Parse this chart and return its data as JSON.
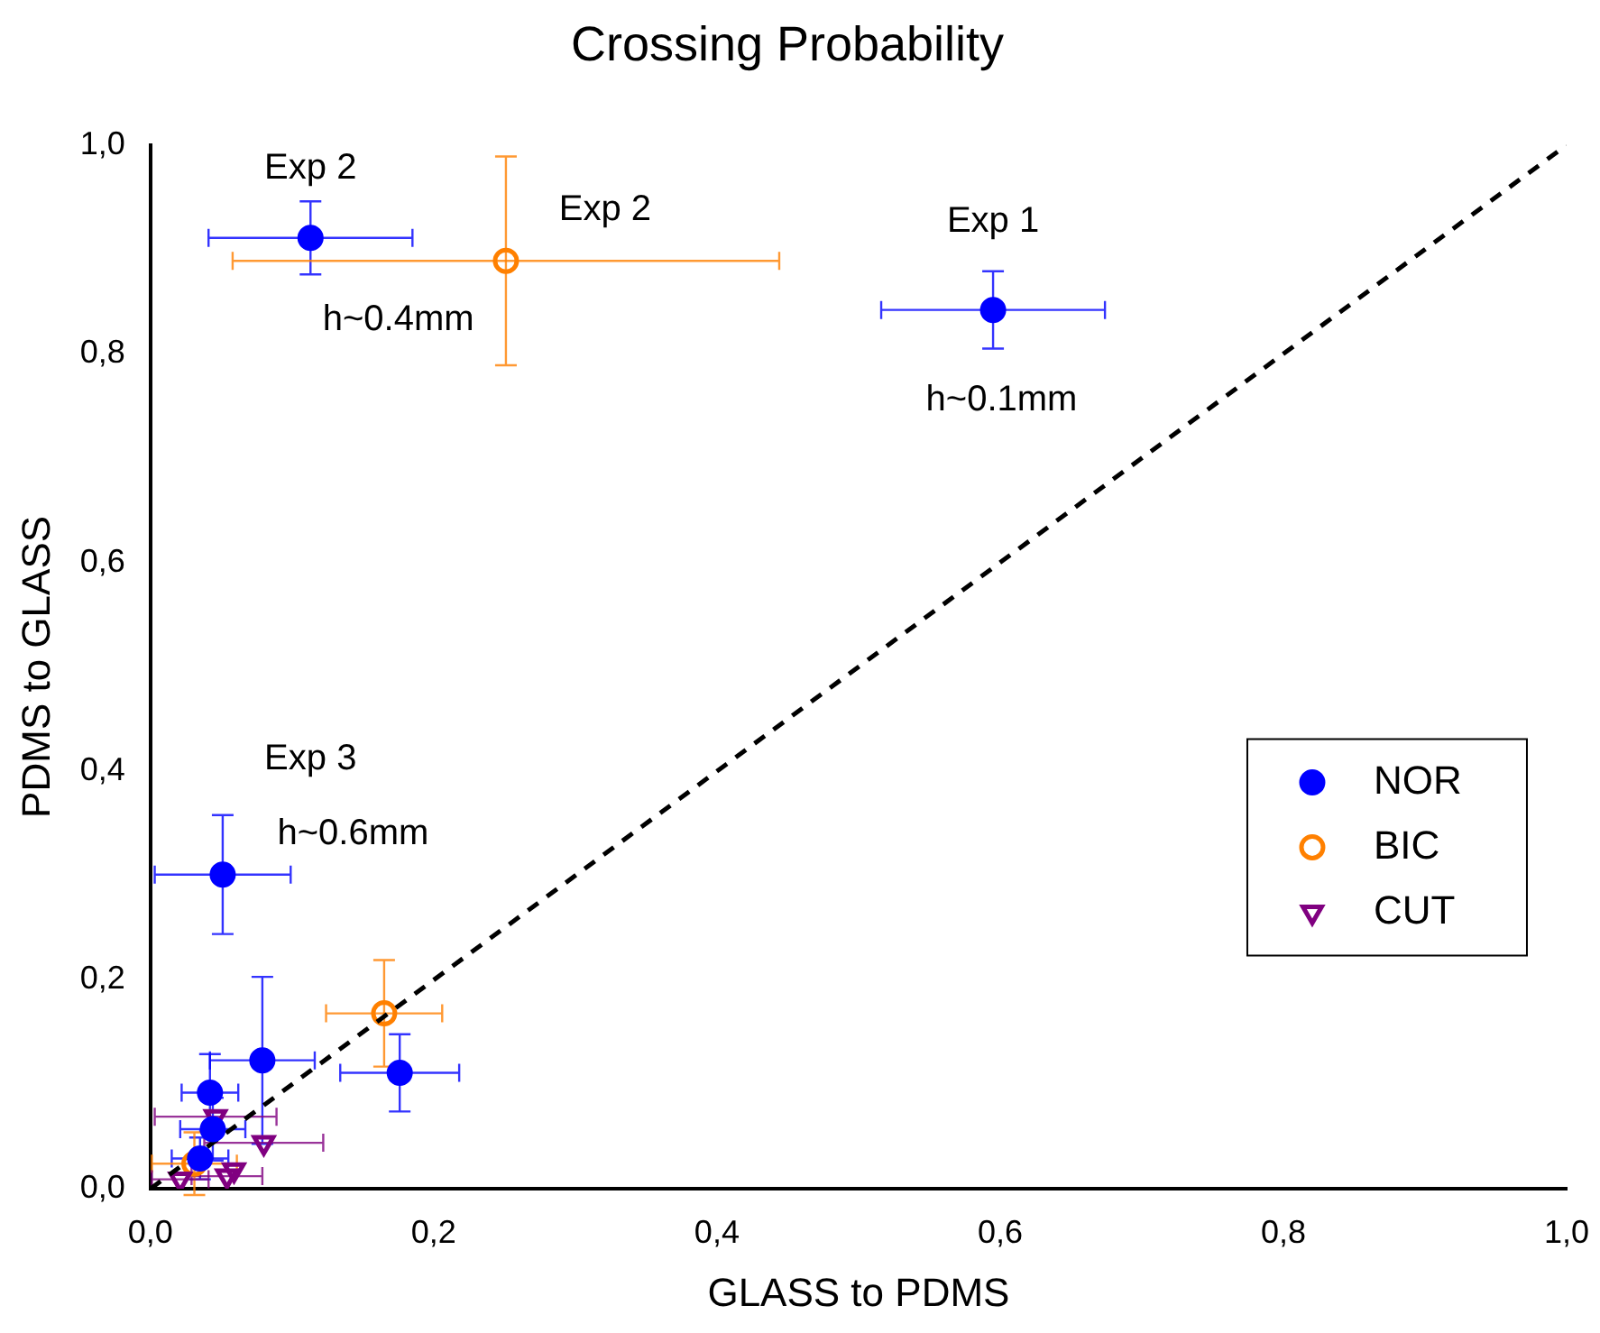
{
  "chart_data": {
    "type": "scatter",
    "title": "Crossing Probability",
    "xlabel": "GLASS to PDMS",
    "ylabel": "PDMS to GLASS",
    "xlim": [
      0,
      1
    ],
    "ylim": [
      0,
      1
    ],
    "xticks": [
      {
        "value": 0,
        "label": "0,0"
      },
      {
        "value": 0.2,
        "label": "0,2"
      },
      {
        "value": 0.4,
        "label": "0,4"
      },
      {
        "value": 0.6,
        "label": "0,6"
      },
      {
        "value": 0.8,
        "label": "0,8"
      },
      {
        "value": 1,
        "label": "1,0"
      }
    ],
    "yticks": [
      {
        "value": 0,
        "label": "0,0"
      },
      {
        "value": 0.2,
        "label": "0,2"
      },
      {
        "value": 0.4,
        "label": "0,4"
      },
      {
        "value": 0.6,
        "label": "0,6"
      },
      {
        "value": 0.8,
        "label": "0,8"
      },
      {
        "value": 1,
        "label": "1,0"
      }
    ],
    "grid": false,
    "legend": "right",
    "series": [
      {
        "name": "NOR",
        "color": "#0000ff",
        "marker": "circle",
        "x": [
          0.595,
          0.113,
          0.051,
          0.176,
          0.079,
          0.042,
          0.044,
          0.035
        ],
        "values": [
          0.842,
          0.911,
          0.301,
          0.111,
          0.123,
          0.092,
          0.057,
          0.029
        ],
        "xerrors": [
          0.079,
          0.072,
          0.048,
          0.042,
          0.037,
          0.02,
          0.023,
          0.02
        ],
        "errors": [
          0.037,
          0.035,
          0.057,
          0.037,
          0.08,
          0.037,
          0.03,
          0.02
        ]
      },
      {
        "name": "BIC",
        "color": "#ff8000",
        "marker": "circle",
        "x": [
          0.251,
          0.165,
          0.031
        ],
        "values": [
          0.889,
          0.168,
          0.024
        ],
        "xerrors": [
          0.193,
          0.041,
          0.03
        ],
        "errors": [
          0.1,
          0.051,
          0.03
        ]
      },
      {
        "name": "CUT",
        "color": "#800080",
        "marker": "triangle",
        "x": [
          0.046,
          0.08,
          0.054,
          0.021,
          0.059
        ],
        "values": [
          0.069,
          0.044,
          0.012,
          0.009,
          0.018
        ],
        "xerrors": [
          0.043,
          0.042,
          0.025,
          0.02,
          null
        ]
      },
      {
        "type": "line",
        "color": "#000000",
        "marker": "none",
        "line_style": "dashed",
        "x": [
          0,
          1
        ],
        "values": [
          0,
          1
        ]
      }
    ],
    "annotations": [
      "Exp 2",
      "Exp 2",
      "h~0.4mm",
      "Exp 1",
      "h~0.1mm",
      "Exp 3",
      "h~0.6mm"
    ]
  }
}
